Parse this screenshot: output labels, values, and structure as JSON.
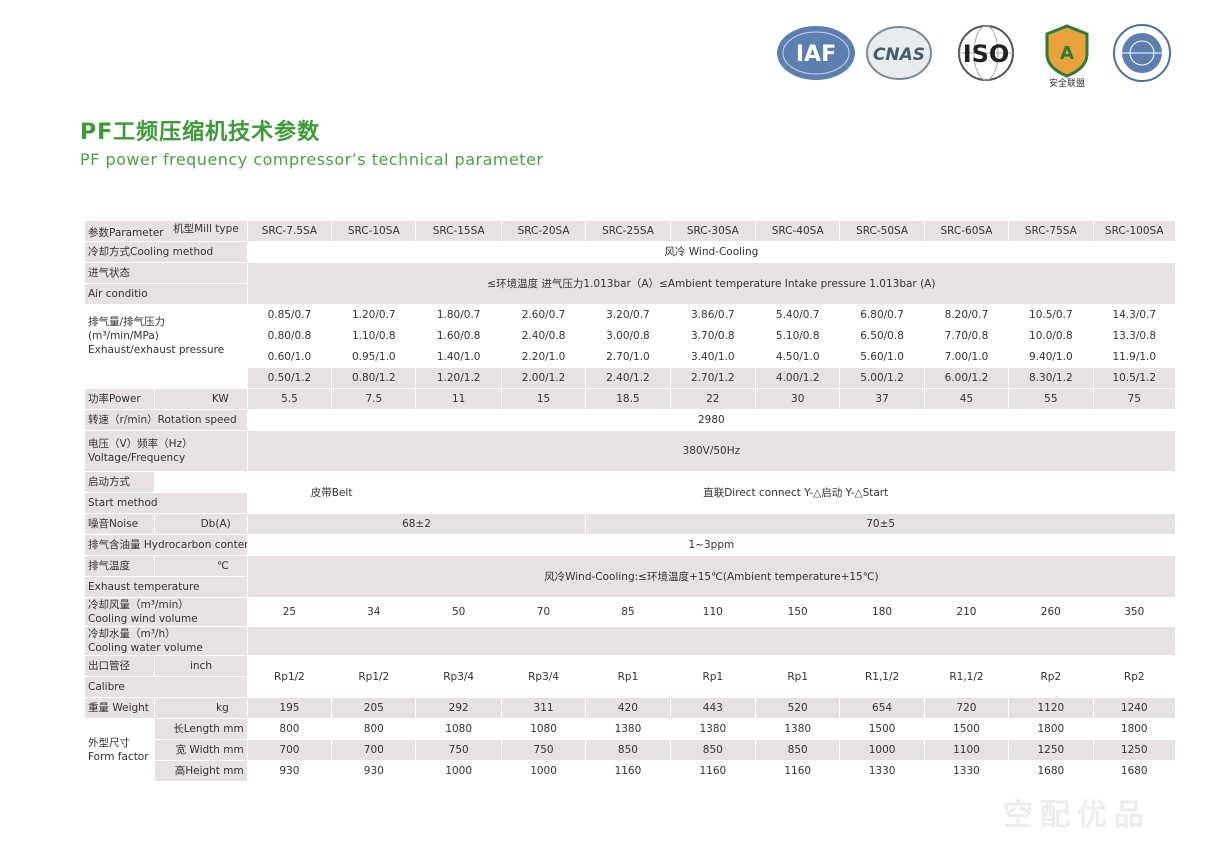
{
  "logos": [
    {
      "name": "iaf-logo",
      "text": "IAF"
    },
    {
      "name": "cnas-logo",
      "text": "CNAS"
    },
    {
      "name": "iso-logo",
      "text": "ISO"
    },
    {
      "name": "safety-alliance-logo",
      "text": "安全联盟",
      "badge": "A"
    },
    {
      "name": "certification-seal-logo",
      "text": ""
    }
  ],
  "colors": {
    "title": "#3c9a37",
    "row_shade": "#e7e1e1",
    "watermark": "#eeeeee"
  },
  "title_cn": "PF工频压缩机技术参数",
  "title_en": "PF power frequency compressor’s technical parameter",
  "header": {
    "mill_type": "机型Mill type",
    "parameter": "参数Parameter",
    "models": [
      "SRC-7.5SA",
      "SRC-10SA",
      "SRC-15SA",
      "SRC-20SA",
      "SRC-25SA",
      "SRC-30SA",
      "SRC-40SA",
      "SRC-50SA",
      "SRC-60SA",
      "SRC-75SA",
      "SRC-100SA"
    ]
  },
  "cooling_method": {
    "label": "冷却方式Cooling method",
    "value": "风冷 Wind-Cooling"
  },
  "intake_state": {
    "label_cn": "进气状态",
    "label_en": "Air conditio",
    "value": "≤环境温度  进气压力1.013bar（A）≤Ambient temperature  Intake pressure 1.013bar (A)"
  },
  "exhaust": {
    "label_cn": "排气量/排气压力",
    "label_unit": "(m³/min/MPa)",
    "label_en": "Exhaust/exhaust pressure",
    "rows": [
      [
        "0.85/0.7",
        "1.20/0.7",
        "1.80/0.7",
        "2.60/0.7",
        "3.20/0.7",
        "3.86/0.7",
        "5.40/0.7",
        "6.80/0.7",
        "8.20/0.7",
        "10.5/0.7",
        "14.3/0.7"
      ],
      [
        "0.80/0.8",
        "1.10/0.8",
        "1.60/0.8",
        "2.40/0.8",
        "3.00/0.8",
        "3.70/0.8",
        "5.10/0.8",
        "6.50/0.8",
        "7.70/0.8",
        "10.0/0.8",
        "13.3/0.8"
      ],
      [
        "0.60/1.0",
        "0.95/1.0",
        "1.40/1.0",
        "2.20/1.0",
        "2.70/1.0",
        "3.40/1.0",
        "4.50/1.0",
        "5.60/1.0",
        "7.00/1.0",
        "9.40/1.0",
        "11.9/1.0"
      ],
      [
        "0.50/1.2",
        "0.80/1.2",
        "1.20/1.2",
        "2.00/1.2",
        "2.40/1.2",
        "2.70/1.2",
        "4.00/1.2",
        "5.00/1.2",
        "6.00/1.2",
        "8.30/1.2",
        "10.5/1.2"
      ]
    ]
  },
  "power": {
    "label": "功率Power",
    "unit": "KW",
    "values": [
      "5.5",
      "7.5",
      "11",
      "15",
      "18.5",
      "22",
      "30",
      "37",
      "45",
      "55",
      "75"
    ]
  },
  "speed": {
    "label": "转速（r/min）Rotation speed",
    "value": "2980"
  },
  "voltage": {
    "label_cn": "电压（V）频率（Hz）",
    "label_en": "Voltage/Frequency",
    "value": "380V/50Hz"
  },
  "start": {
    "label_cn": "启动方式",
    "label_en": "Start method",
    "belt": "皮带Belt",
    "direct": "直联Direct connect   Y-△启动  Y-△Start"
  },
  "noise": {
    "label": "噪音Noise",
    "unit": "Db(A)",
    "low": "68±2",
    "high": "70±5"
  },
  "hydrocarbon": {
    "label": "排气含油量 Hydrocarbon content",
    "value": "1~3ppm"
  },
  "exhaust_temp": {
    "label_cn": "排气温度",
    "unit": "℃",
    "label_en": "Exhaust temperature",
    "value": "风冷Wind-Cooling:≤环境温度+15℃(Ambient temperature+15℃)"
  },
  "cooling_wind": {
    "label_cn": "冷却风量（m³/min）",
    "label_en": "Cooling wind volume",
    "values": [
      "25",
      "34",
      "50",
      "70",
      "85",
      "110",
      "150",
      "180",
      "210",
      "260",
      "350"
    ]
  },
  "cooling_water": {
    "label_cn": "冷却水量（m³/h）",
    "label_en": "Cooling water volume"
  },
  "calibre": {
    "label_cn": "出口管径",
    "unit": "inch",
    "label_en": "Calibre",
    "values": [
      "Rp1/2",
      "Rp1/2",
      "Rp3/4",
      "Rp3/4",
      "Rp1",
      "Rp1",
      "Rp1",
      "R1,1/2",
      "R1,1/2",
      "Rp2",
      "Rp2"
    ]
  },
  "weight": {
    "label": "重量 Weight",
    "unit": "kg",
    "values": [
      "195",
      "205",
      "292",
      "311",
      "420",
      "443",
      "520",
      "654",
      "720",
      "1120",
      "1240"
    ]
  },
  "form": {
    "label_cn": "外型尺寸",
    "label_en": "Form factor",
    "length": {
      "label": "长Length mm",
      "values": [
        "800",
        "800",
        "1080",
        "1080",
        "1380",
        "1380",
        "1380",
        "1500",
        "1500",
        "1800",
        "1800"
      ]
    },
    "width": {
      "label": "宽 Width mm",
      "values": [
        "700",
        "700",
        "750",
        "750",
        "850",
        "850",
        "850",
        "1000",
        "1100",
        "1250",
        "1250"
      ]
    },
    "height": {
      "label": "高Height mm",
      "values": [
        "930",
        "930",
        "1000",
        "1000",
        "1160",
        "1160",
        "1160",
        "1330",
        "1330",
        "1680",
        "1680"
      ]
    }
  },
  "watermark": "空配优品"
}
